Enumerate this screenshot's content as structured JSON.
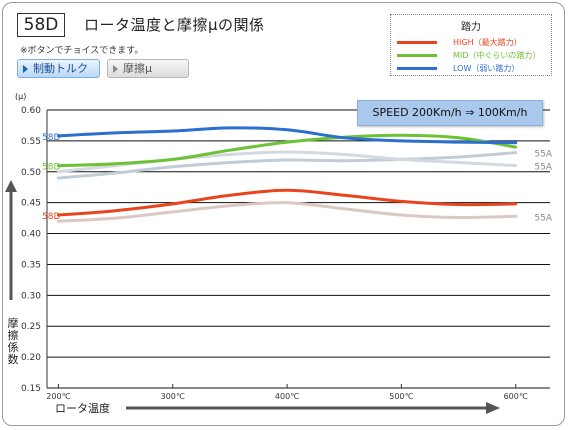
{
  "header": {
    "code": "58D",
    "title": "ロータ温度と摩擦μの関係",
    "note": "※ボタンでチョイスできます。"
  },
  "buttons": {
    "torque": "制動トルク",
    "mu": "摩擦μ"
  },
  "legend_title": "踏力",
  "speed_text": "SPEED 200Km/h ⇒ 100Km/h",
  "colors": {
    "high": "#e8451c",
    "mid": "#6cc234",
    "low": "#2d6fd0",
    "high_ref": "#dcc8c3",
    "mid_ref": "#c2ccd6",
    "low_ref": "#d3d9e1",
    "grid": "#111111"
  },
  "chart_data": {
    "type": "line",
    "ylabel": "摩擦係数",
    "yunit": "(μ)",
    "xlabel": "ロータ温度",
    "ylim": [
      0.15,
      0.6
    ],
    "y_ticks": [
      "0.60",
      "0.55",
      "0.50",
      "0.45",
      "0.40",
      "0.35",
      "0.30",
      "0.25",
      "0.20",
      "0.15"
    ],
    "x_ticks": [
      "200℃",
      "300℃",
      "400℃",
      "500℃",
      "600℃"
    ],
    "x": [
      200,
      250,
      300,
      350,
      400,
      450,
      500,
      550,
      600
    ],
    "series": [
      {
        "name": "HIGH（最大踏力）",
        "key": "high",
        "label": "58D",
        "values": [
          0.43,
          0.437,
          0.448,
          0.462,
          0.47,
          0.462,
          0.452,
          0.447,
          0.448
        ]
      },
      {
        "name": "MID（中ぐらいの踏力）",
        "key": "mid",
        "label": "58D",
        "values": [
          0.51,
          0.513,
          0.52,
          0.535,
          0.548,
          0.556,
          0.559,
          0.555,
          0.54
        ]
      },
      {
        "name": "LOW（弱い踏力）",
        "key": "low",
        "label": "58D",
        "values": [
          0.558,
          0.563,
          0.566,
          0.571,
          0.568,
          0.555,
          0.55,
          0.548,
          0.547
        ]
      },
      {
        "name": "",
        "key": "high_ref",
        "label": "55A",
        "values": [
          0.42,
          0.425,
          0.435,
          0.445,
          0.45,
          0.44,
          0.43,
          0.426,
          0.428
        ]
      },
      {
        "name": "",
        "key": "mid_ref",
        "label": "55A",
        "values": [
          0.49,
          0.498,
          0.508,
          0.515,
          0.519,
          0.518,
          0.52,
          0.524,
          0.531
        ]
      },
      {
        "name": "",
        "key": "low_ref",
        "label": "55A",
        "values": [
          0.5,
          0.51,
          0.52,
          0.528,
          0.532,
          0.528,
          0.52,
          0.515,
          0.51
        ]
      }
    ]
  }
}
